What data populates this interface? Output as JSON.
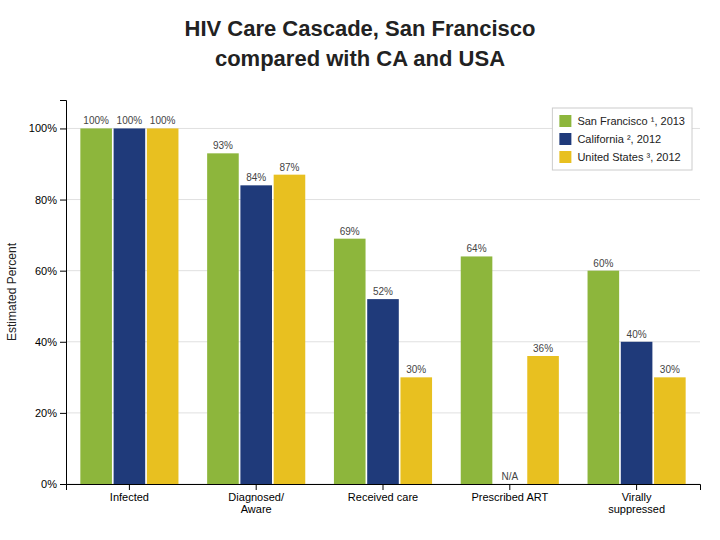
{
  "chart_data": {
    "type": "bar",
    "title": "HIV Care Cascade, San Francisco",
    "subtitle": "compared with CA and USA",
    "ylabel": "Estimated Percent",
    "categories": [
      "Infected",
      "Diagnosed/\nAware",
      "Received care",
      "Prescribed ART",
      "Virally\nsuppressed"
    ],
    "series": [
      {
        "name": "San Francisco ¹, 2013",
        "color": "#8db63c",
        "values": [
          100,
          93,
          69,
          64,
          60
        ],
        "value_labels": [
          "100%",
          "93%",
          "69%",
          "64%",
          "60%"
        ]
      },
      {
        "name": "California ², 2012",
        "color": "#1f3a7a",
        "values": [
          100,
          84,
          52,
          0,
          40
        ],
        "value_labels": [
          "100%",
          "84%",
          "52%",
          "N/A",
          "40%"
        ]
      },
      {
        "name": "United States ³, 2012",
        "color": "#e8c020",
        "values": [
          100,
          87,
          30,
          36,
          30
        ],
        "value_labels": [
          "100%",
          "87%",
          "30%",
          "36%",
          "30%"
        ]
      }
    ],
    "ylim": [
      0,
      108
    ],
    "yticks": [
      {
        "value": 0,
        "label": "0%"
      },
      {
        "value": 20,
        "label": "20%"
      },
      {
        "value": 40,
        "label": "40%"
      },
      {
        "value": 60,
        "label": "60%"
      },
      {
        "value": 80,
        "label": "80%"
      },
      {
        "value": 100,
        "label": "100%"
      }
    ],
    "grid": true,
    "legend": "upper-right",
    "data_labels": true
  }
}
